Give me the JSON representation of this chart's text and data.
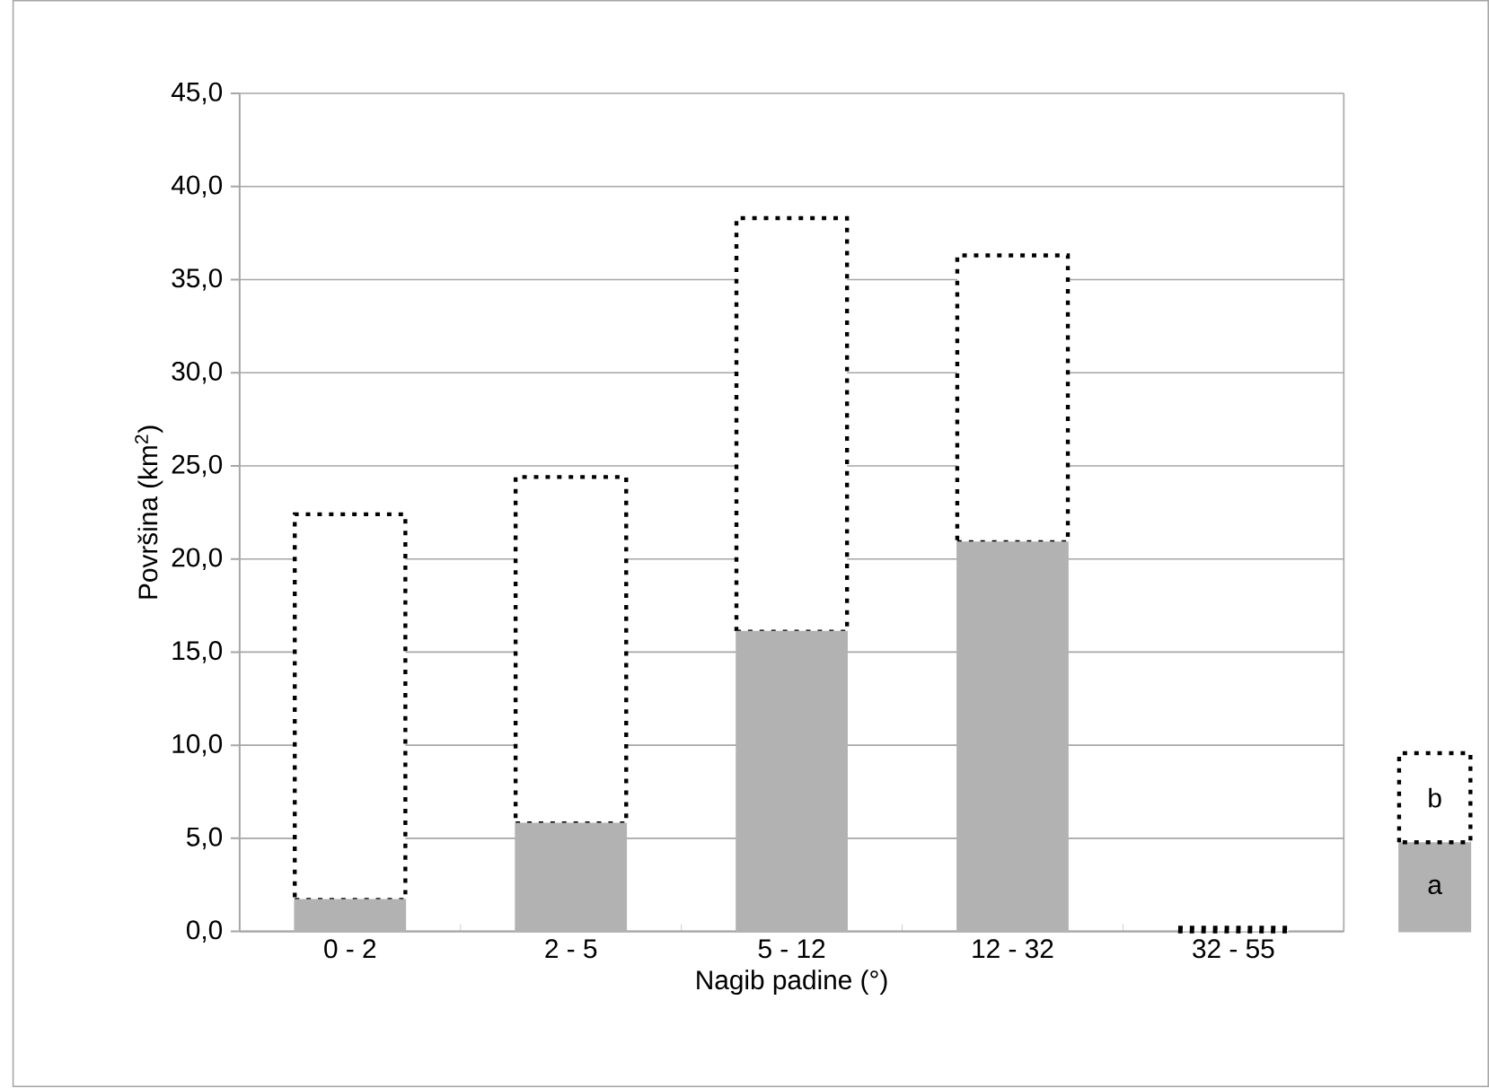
{
  "chart_data": {
    "type": "bar",
    "xlabel": "Nagib padine (°)",
    "ylabel": "Površina (km$^{2}$)",
    "categories": [
      "0 - 2",
      "2 - 5",
      "5 - 12",
      "12 - 32",
      "32 - 55"
    ],
    "stacked": true,
    "series": [
      {
        "name": "a",
        "color": "#b2b2b2",
        "values": [
          1.7,
          5.8,
          16.1,
          20.9,
          0
        ]
      },
      {
        "name": "b",
        "color": "#000000",
        "line_style": "dotted",
        "values": [
          20.7,
          18.6,
          22.2,
          15.4,
          0.2
        ]
      }
    ],
    "ylim": [
      0,
      45
    ],
    "yticks": [
      {
        "value": 0,
        "label": "0,0"
      },
      {
        "value": 5,
        "label": "5,0"
      },
      {
        "value": 10,
        "label": "10,0"
      },
      {
        "value": 15,
        "label": "15,0"
      },
      {
        "value": 20,
        "label": "20,0"
      },
      {
        "value": 25,
        "label": "25,0"
      },
      {
        "value": 30,
        "label": "30,0"
      },
      {
        "value": 35,
        "label": "35,0"
      },
      {
        "value": 40,
        "label": "40,0"
      },
      {
        "value": 45,
        "label": "45,0"
      }
    ],
    "grid": "y",
    "legend": "right"
  }
}
